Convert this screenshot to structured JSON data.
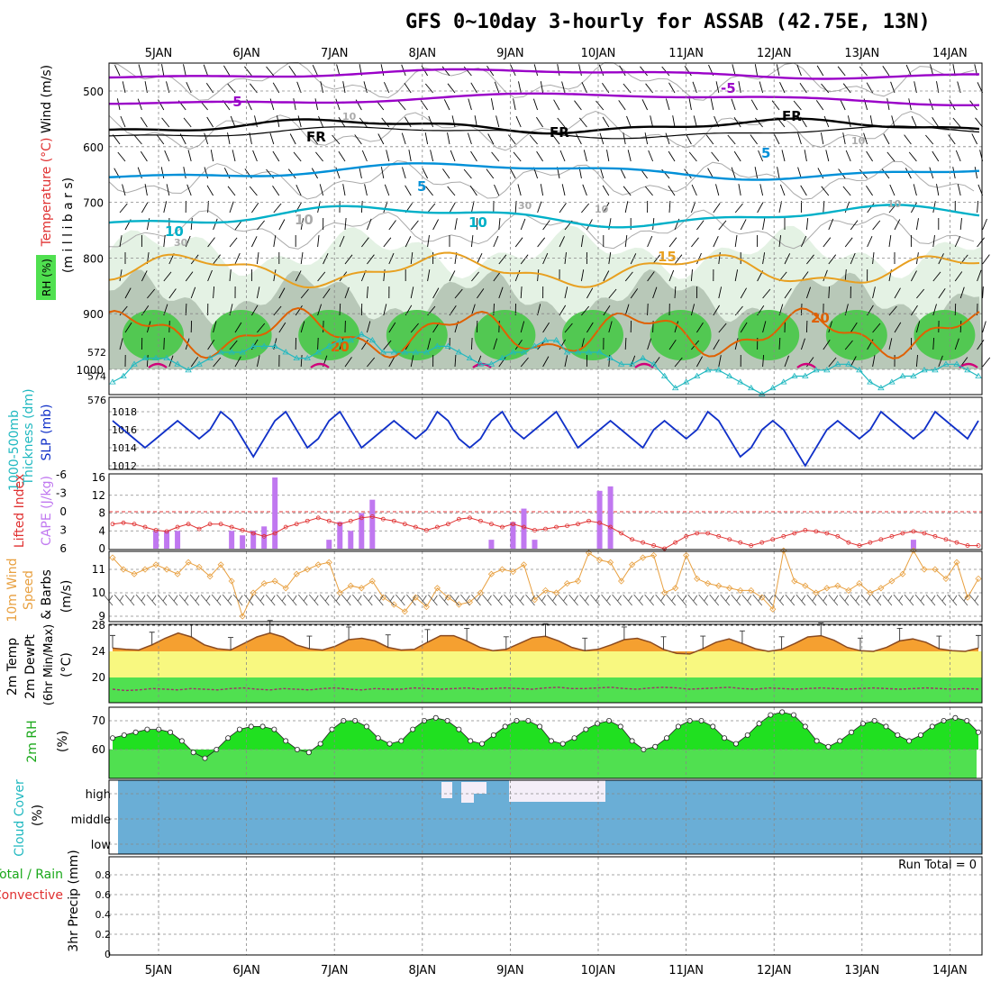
{
  "title": "GFS 0~10day 3-hourly for ASSAB (42.75E, 13N)",
  "dates": [
    "5JAN",
    "6JAN",
    "7JAN",
    "8JAN",
    "9JAN",
    "10JAN",
    "11JAN",
    "12JAN",
    "13JAN",
    "14JAN"
  ],
  "colors": {
    "frame": "#000000",
    "grid": "#888888",
    "purple": "#9a00c8",
    "cyan": "#00b0c8",
    "blue_temp": "#0090d8",
    "orange": "#e8a020",
    "dark_orange": "#e06000",
    "magenta": "#d0007a",
    "slp": "#1030c8",
    "thickness": "#20b8c0",
    "cape": "#c078f0",
    "li": "#e03030",
    "wind": "#e8a040",
    "temp_fill": "#f5a030",
    "temp_line": "#8a4a20",
    "yellow": "#f8f880",
    "green_band": "#50e050",
    "rh_fill": "#20e020",
    "rh_band": "#50e050",
    "cloud": "#6aaed6",
    "cloud_clear": "#f4eef8"
  },
  "sections": {
    "upper_air": {
      "labels": [
        "Wind (m/s)",
        "Temperature (°C)",
        "RH (%)",
        "(m i l l i b a r s)"
      ],
      "ticks": [
        "500",
        "600",
        "700",
        "800",
        "900",
        "1000"
      ],
      "contour_labels": [
        "-5",
        "-5",
        "FR",
        "FR",
        "FR",
        "5",
        "5",
        "10",
        "10",
        "10",
        "15",
        "20",
        "20",
        "30",
        "30",
        "10",
        "10",
        "10",
        "10"
      ]
    },
    "pressure": {
      "labels": [
        "Thickness (dm)",
        "1000-500mb",
        "SLP (mb)"
      ],
      "thickness_ticks": [
        "576",
        "574",
        "572"
      ],
      "slp_ticks": [
        "1018",
        "1016",
        "1014",
        "1012"
      ]
    },
    "stability": {
      "labels": [
        "Lifted Index",
        "CAPE (J/kg)"
      ],
      "li_ticks": [
        "-6",
        "-3",
        "0",
        "3",
        "6"
      ],
      "cape_ticks": [
        "16",
        "12",
        "8",
        "4",
        "0"
      ]
    },
    "wind10m": {
      "labels": [
        "10m Wind",
        "Speed",
        "& Barbs",
        "(m/s)"
      ],
      "ticks": [
        "11",
        "10",
        "9"
      ]
    },
    "temp2m": {
      "labels": [
        "2m Temp",
        "2m DewPt",
        "(6hr Min/Max)",
        "(°C)"
      ],
      "ticks": [
        "28",
        "24",
        "20"
      ]
    },
    "rh2m": {
      "labels": [
        "2m RH",
        "(%)"
      ],
      "ticks": [
        "70",
        "60"
      ]
    },
    "cloud": {
      "labels": [
        "Cloud Cover",
        "(%)"
      ],
      "levels": [
        "high",
        "middle",
        "low"
      ]
    },
    "precip": {
      "labels": [
        "Total / Rain",
        "Convective",
        "3hr Precip (mm)"
      ],
      "ticks": [
        "0.8",
        "0.6",
        "0.4",
        "0.2",
        "0"
      ],
      "run_total": "Run Total = 0"
    }
  },
  "chart_data": {
    "type": "line",
    "x_unit": "hours since start (3-hourly, ~10 days)",
    "slp_mb": [
      1017,
      1016,
      1015,
      1014,
      1015,
      1016,
      1017,
      1016,
      1015,
      1016,
      1018,
      1017,
      1015,
      1013,
      1015,
      1017,
      1018,
      1016,
      1014,
      1015,
      1017,
      1018,
      1016,
      1014,
      1015,
      1016,
      1017,
      1016,
      1015,
      1016,
      1018,
      1017,
      1015,
      1014,
      1015,
      1017,
      1018,
      1016,
      1015,
      1016,
      1017,
      1018,
      1016,
      1014,
      1015,
      1016,
      1017,
      1016,
      1015,
      1014,
      1016,
      1017,
      1016,
      1015,
      1016,
      1018,
      1017,
      1015,
      1013,
      1014,
      1016,
      1017,
      1016,
      1014,
      1012,
      1014,
      1016,
      1017,
      1016,
      1015,
      1016,
      1018,
      1017,
      1016,
      1015,
      1016,
      1018,
      1017,
      1016,
      1015,
      1017
    ],
    "thickness_dm": [
      574.5,
      574,
      573,
      572.5,
      572.5,
      572.5,
      573,
      573.5,
      573,
      572.5,
      572,
      572,
      572,
      571.5,
      571.5,
      571.5,
      572,
      572.5,
      572.5,
      572,
      571.5,
      571,
      571,
      570.5,
      571,
      572,
      572,
      572,
      572,
      572,
      571.5,
      571.5,
      572,
      572.5,
      573,
      573,
      572.5,
      572,
      572,
      571.5,
      571,
      571,
      572,
      572,
      572,
      572,
      572.5,
      573,
      573,
      572.5,
      573,
      574,
      575,
      574.5,
      574,
      573.5,
      573.5,
      574,
      574.5,
      575,
      575.5,
      575,
      574.5,
      574,
      574,
      573.5,
      573.5,
      573,
      573,
      573.5,
      574.5,
      575,
      574.5,
      574,
      574,
      573.5,
      573.5,
      573,
      573,
      573.5,
      574
    ],
    "cape_jkg": [
      0,
      0,
      0,
      0,
      4,
      4,
      4,
      0,
      0,
      0,
      0,
      4,
      3,
      4,
      5,
      16,
      0,
      0,
      0,
      0,
      2,
      6,
      4,
      8,
      11,
      0,
      0,
      0,
      0,
      0,
      0,
      0,
      0,
      0,
      0,
      2,
      0,
      6,
      9,
      2,
      0,
      0,
      0,
      0,
      0,
      13,
      14,
      0,
      0,
      0,
      0,
      0,
      0,
      0,
      0,
      0,
      0,
      0,
      0,
      0,
      0,
      0,
      0,
      0,
      0,
      0,
      0,
      0,
      0,
      0,
      0,
      0,
      0,
      0,
      2,
      0,
      0,
      0,
      0,
      0,
      0
    ],
    "lifted_index": [
      2,
      1.8,
      2,
      2.5,
      3,
      3.2,
      2.5,
      2,
      2.8,
      2,
      2,
      2.5,
      3,
      3.5,
      4,
      3.5,
      2.5,
      2,
      1.5,
      1,
      1.5,
      2,
      1.5,
      1,
      0.8,
      1.2,
      1.5,
      2,
      2.5,
      3,
      2.5,
      2,
      1.2,
      1,
      1.5,
      2,
      2.5,
      2,
      2.5,
      3,
      2.8,
      2.5,
      2.3,
      2,
      1.5,
      1.8,
      2.5,
      3.5,
      4.5,
      5,
      5.5,
      6,
      5,
      4,
      3.5,
      3.5,
      4,
      4.5,
      5,
      5.5,
      5,
      4.5,
      4,
      3.5,
      3,
      3.2,
      3.5,
      4,
      5,
      5.5,
      5,
      4.5,
      4,
      3.5,
      3.2,
      3.5,
      4,
      4.5,
      5,
      5.5,
      5.5
    ],
    "wind_ms": [
      11.5,
      11,
      10.8,
      11,
      11.2,
      11,
      10.8,
      11.3,
      11.1,
      10.7,
      11.2,
      10.5,
      9,
      10,
      10.4,
      10.5,
      10.2,
      10.8,
      11,
      11.2,
      11.3,
      10,
      10.3,
      10.2,
      10.5,
      9.8,
      9.5,
      9.2,
      9.8,
      9.4,
      10.2,
      9.8,
      9.5,
      9.6,
      10,
      10.8,
      11,
      10.9,
      11.2,
      9.7,
      10.1,
      10,
      10.4,
      10.5,
      11.7,
      11.4,
      11.3,
      10.5,
      11.2,
      11.5,
      11.6,
      10,
      10.2,
      11.6,
      10.6,
      10.4,
      10.3,
      10.2,
      10.1,
      10.1,
      9.8,
      9.3,
      11.8,
      10.5,
      10.3,
      10,
      10.2,
      10.3,
      10.1,
      10.4,
      10,
      10.2,
      10.5,
      10.8,
      11.8,
      11,
      11,
      10.6,
      11.3,
      9.8,
      10.6
    ],
    "temp2m_c": [
      24.5,
      24.3,
      24.2,
      25,
      26,
      26.8,
      26.2,
      25,
      24.4,
      24.2,
      25.2,
      26.2,
      26.8,
      26.2,
      25,
      24.4,
      24.2,
      24.8,
      25.8,
      26,
      25.6,
      24.6,
      24.2,
      24.3,
      25.4,
      26.4,
      26.4,
      25.6,
      24.6,
      24.1,
      24.3,
      25.2,
      26.1,
      26.3,
      25.6,
      24.6,
      24.1,
      24.3,
      25,
      25.8,
      26,
      25.4,
      24.3,
      23.7,
      23.6,
      24.4,
      25.4,
      25.9,
      25.2,
      24.4,
      24,
      24.3,
      25.2,
      26.2,
      26.4,
      25.7,
      24.6,
      24.1,
      24,
      24.6,
      25.6,
      25.9,
      25.4,
      24.4,
      24.1,
      24,
      24.5
    ],
    "dewpt2m_c": [
      18.2,
      18,
      18.1,
      18.3,
      18.2,
      18.1,
      18.3,
      18.2,
      18.1,
      18.3,
      18.4,
      18.2,
      18.1,
      18.3,
      18.2,
      18.1,
      18.3,
      18.4,
      18.2,
      18.1,
      18.3,
      18.2,
      18.2,
      18.4,
      18.3,
      18.2,
      18.3,
      18.4,
      18.2,
      18.3,
      18.4,
      18.3,
      18.2,
      18.4,
      18.5,
      18.3,
      18.3,
      18.4,
      18.5,
      18.3,
      18.2,
      18.4,
      18.5,
      18.4,
      18.2,
      18.3,
      18.4,
      18.5,
      18.3,
      18.2,
      18.4,
      18.3,
      18.2,
      18.3,
      18.4,
      18.3,
      18.2,
      18.3,
      18.4,
      18.3,
      18.2,
      18.3,
      18.4,
      18.3,
      18.2,
      18.3,
      18.2
    ],
    "rh2m_pct": [
      64,
      65,
      66,
      67,
      67,
      66,
      63,
      59,
      57,
      60,
      64,
      67,
      68,
      68,
      67,
      63,
      60,
      59,
      62,
      67,
      70,
      70,
      68,
      64,
      62,
      63,
      67,
      70,
      71,
      70,
      67,
      63,
      62,
      65,
      68,
      70,
      70,
      68,
      63,
      62,
      64,
      67,
      69,
      70,
      68,
      63,
      60,
      61,
      64,
      68,
      70,
      70,
      68,
      64,
      62,
      65,
      69,
      72,
      73,
      72,
      68,
      63,
      61,
      63,
      66,
      69,
      70,
      68,
      65,
      63,
      65,
      68,
      70,
      71,
      70,
      66
    ]
  }
}
